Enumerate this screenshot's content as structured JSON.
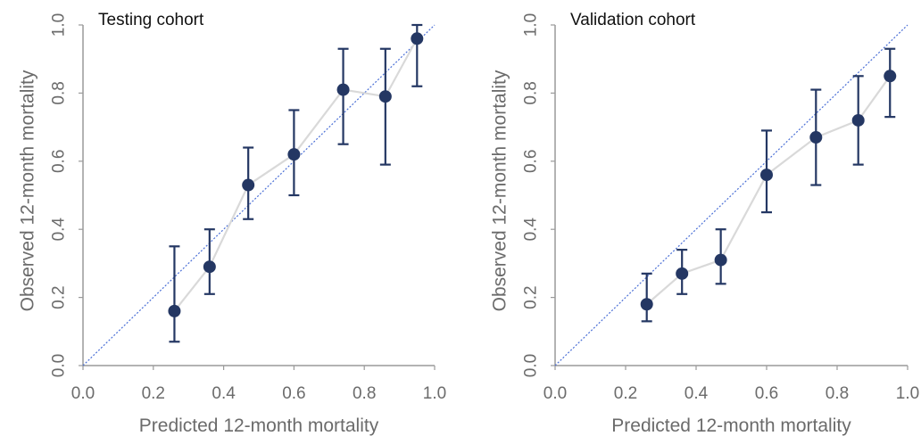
{
  "chart_data": [
    {
      "type": "scatter",
      "title": "Testing cohort",
      "xlabel": "Predicted 12-month mortality",
      "ylabel": "Observed 12-month mortality",
      "xlim": [
        0,
        1
      ],
      "ylim": [
        0,
        1
      ],
      "xticks": [
        "0.0",
        "0.2",
        "0.4",
        "0.6",
        "0.8",
        "1.0"
      ],
      "yticks": [
        "0.0",
        "0.2",
        "0.4",
        "0.6",
        "0.8",
        "1.0"
      ],
      "grid": false,
      "reference_line": "y = x (dotted)",
      "colors": {
        "points": "#243763",
        "connector": "#d9d9d9",
        "reference": "#4a6fd6"
      },
      "points": [
        {
          "x": 0.26,
          "y": 0.16,
          "lower": 0.07,
          "upper": 0.35
        },
        {
          "x": 0.36,
          "y": 0.29,
          "lower": 0.21,
          "upper": 0.4
        },
        {
          "x": 0.47,
          "y": 0.53,
          "lower": 0.43,
          "upper": 0.64
        },
        {
          "x": 0.6,
          "y": 0.62,
          "lower": 0.5,
          "upper": 0.75
        },
        {
          "x": 0.74,
          "y": 0.81,
          "lower": 0.65,
          "upper": 0.93
        },
        {
          "x": 0.86,
          "y": 0.79,
          "lower": 0.59,
          "upper": 0.93
        },
        {
          "x": 0.95,
          "y": 0.96,
          "lower": 0.82,
          "upper": 1.0
        }
      ]
    },
    {
      "type": "scatter",
      "title": "Validation cohort",
      "xlabel": "Predicted 12-month mortality",
      "ylabel": "Observed 12-month mortality",
      "xlim": [
        0,
        1
      ],
      "ylim": [
        0,
        1
      ],
      "xticks": [
        "0.0",
        "0.2",
        "0.4",
        "0.6",
        "0.8",
        "1.0"
      ],
      "yticks": [
        "0.0",
        "0.2",
        "0.4",
        "0.6",
        "0.8",
        "1.0"
      ],
      "grid": false,
      "reference_line": "y = x (dotted)",
      "colors": {
        "points": "#243763",
        "connector": "#d9d9d9",
        "reference": "#4a6fd6"
      },
      "points": [
        {
          "x": 0.26,
          "y": 0.18,
          "lower": 0.13,
          "upper": 0.27
        },
        {
          "x": 0.36,
          "y": 0.27,
          "lower": 0.21,
          "upper": 0.34
        },
        {
          "x": 0.47,
          "y": 0.31,
          "lower": 0.24,
          "upper": 0.4
        },
        {
          "x": 0.6,
          "y": 0.56,
          "lower": 0.45,
          "upper": 0.69
        },
        {
          "x": 0.74,
          "y": 0.67,
          "lower": 0.53,
          "upper": 0.81
        },
        {
          "x": 0.86,
          "y": 0.72,
          "lower": 0.59,
          "upper": 0.85
        },
        {
          "x": 0.95,
          "y": 0.85,
          "lower": 0.73,
          "upper": 0.93
        }
      ]
    }
  ]
}
